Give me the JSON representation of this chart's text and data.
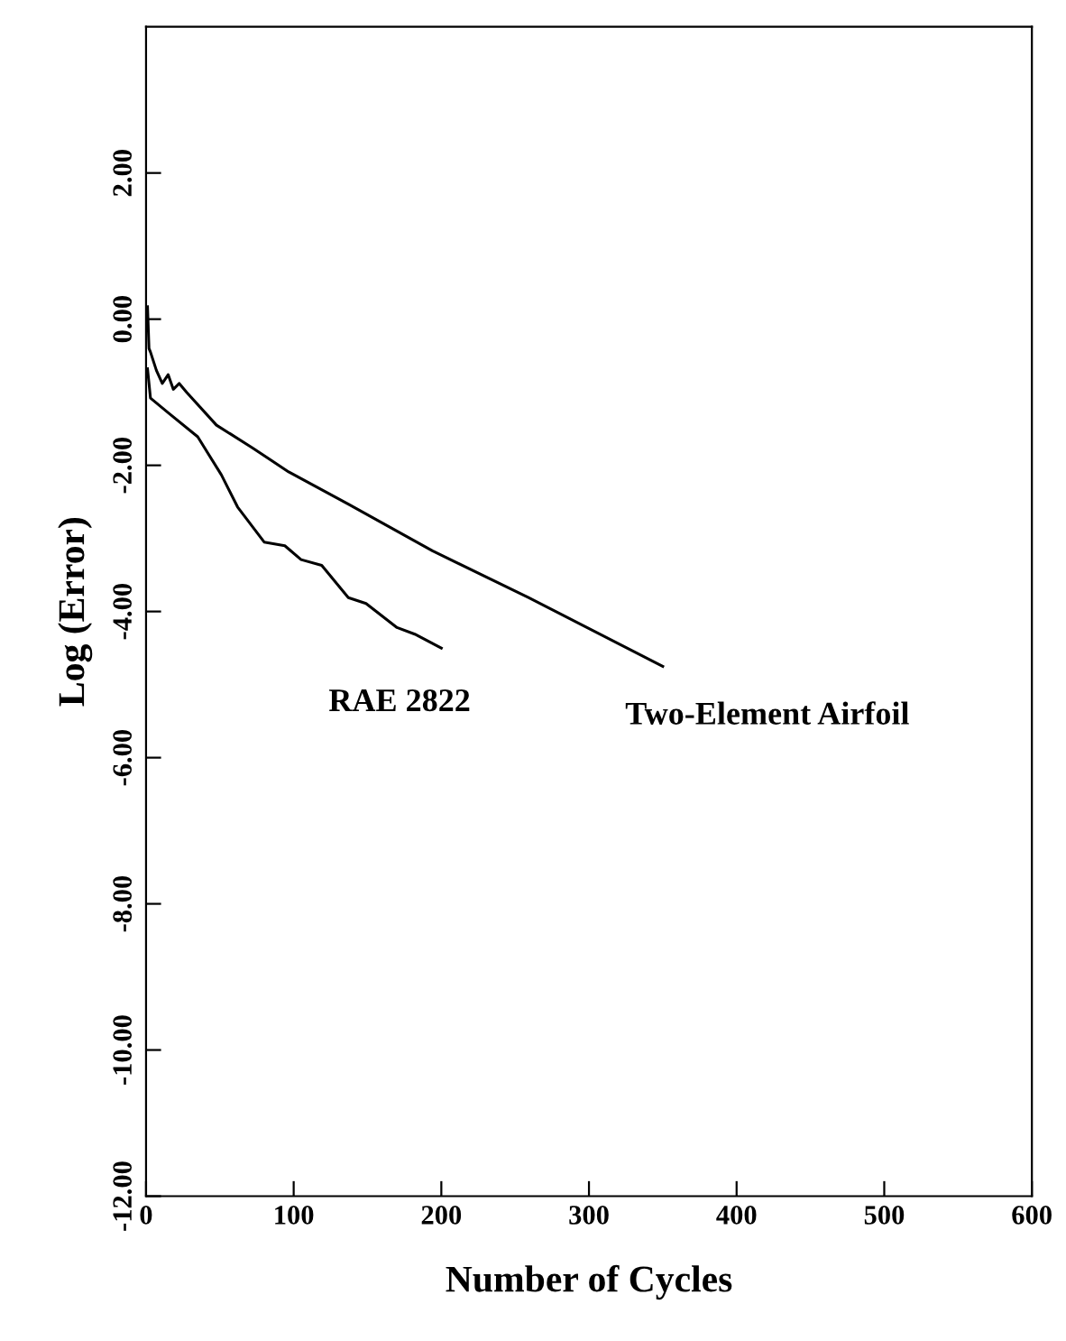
{
  "chart_data": {
    "type": "line",
    "xlabel": "Number of Cycles",
    "ylabel": "Log (Error)",
    "xlim": [
      0,
      600
    ],
    "ylim": [
      -12,
      4
    ],
    "xticks": [
      0,
      100,
      200,
      300,
      400,
      500,
      600
    ],
    "yticks": [
      {
        "value": -12,
        "label": "-12.00"
      },
      {
        "value": -10,
        "label": "-10.00"
      },
      {
        "value": -8,
        "label": "-8.00"
      },
      {
        "value": -6,
        "label": "-6.00"
      },
      {
        "value": -4,
        "label": "-4.00"
      },
      {
        "value": -2,
        "label": "-2.00"
      },
      {
        "value": 0,
        "label": "0.00"
      },
      {
        "value": 2,
        "label": "2.00"
      }
    ],
    "grid": false,
    "legend": false,
    "marker": "none",
    "line_style": "solid",
    "series": [
      {
        "name": "Two-Element Airfoil",
        "color": "#000000",
        "x": [
          1,
          2,
          3,
          7,
          11,
          15,
          18.5,
          22.5,
          27.5,
          47.7,
          72,
          96.6,
          137,
          194,
          259,
          350
        ],
        "values": [
          0.17,
          -0.4,
          -0.45,
          -0.7,
          -0.88,
          -0.76,
          -0.96,
          -0.88,
          -1.0,
          -1.45,
          -1.76,
          -2.09,
          -2.53,
          -3.17,
          -3.81,
          -4.75
        ]
      },
      {
        "name": "RAE 2822",
        "color": "#000000",
        "x": [
          1,
          3,
          15,
          35,
          51,
          62,
          80,
          94,
          105,
          119,
          137,
          149,
          170,
          182,
          200
        ],
        "values": [
          -0.68,
          -1.08,
          -1.28,
          -1.61,
          -2.13,
          -2.57,
          -3.05,
          -3.1,
          -3.29,
          -3.37,
          -3.81,
          -3.89,
          -4.22,
          -4.31,
          -4.5
        ]
      }
    ]
  }
}
